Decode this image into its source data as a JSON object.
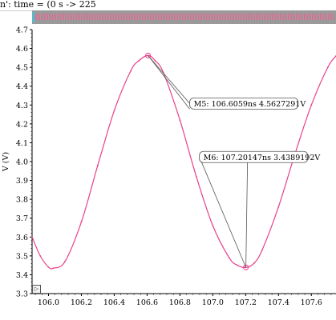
{
  "window": {
    "title": "n': time = (0 s -> 225"
  },
  "colors": {
    "trace": "#e8418a",
    "marker_box": "#ffffff",
    "axis": "#000000",
    "overview_bg": "#9a9a9a"
  },
  "controls": {
    "play_icon": "play-icon",
    "play_glyph": "▷"
  },
  "chart_data": {
    "type": "line",
    "xlim": [
      105.9,
      107.75
    ],
    "ylim": [
      3.3,
      4.7
    ],
    "x_ticks": [
      106.0,
      106.2,
      106.4,
      106.6,
      106.8,
      107.0,
      107.2,
      107.4,
      107.6
    ],
    "x_tick_labels": [
      "106.0",
      "106.2",
      "106.4",
      "106.6",
      "106.8",
      "107.0",
      "107.2",
      "107.4",
      "107.6"
    ],
    "y_ticks": [
      3.3,
      3.4,
      3.5,
      3.6,
      3.7,
      3.8,
      3.9,
      4.0,
      4.1,
      4.2,
      4.3,
      4.4,
      4.5,
      4.6,
      4.7
    ],
    "y_tick_labels": [
      "3.3",
      "3.4",
      "3.5",
      "3.6",
      "3.7",
      "3.8",
      "3.9",
      "4.0",
      "4.1",
      "4.2",
      "4.3",
      "4.4",
      "4.5",
      "4.6",
      "4.7"
    ],
    "xlabel": "",
    "ylabel": "V (V)",
    "series": [
      {
        "x": [
          105.9,
          105.95,
          106.0,
          106.03,
          106.1,
          106.2,
          106.3,
          106.4,
          106.5,
          106.55,
          106.6059,
          106.65,
          106.7,
          106.8,
          106.9,
          107.0,
          107.1,
          107.15,
          107.20147,
          107.25,
          107.3,
          107.4,
          107.5,
          107.6,
          107.7,
          107.75
        ],
        "y": [
          3.6,
          3.5,
          3.44,
          3.435,
          3.47,
          3.68,
          3.98,
          4.27,
          4.48,
          4.535,
          4.5627,
          4.535,
          4.47,
          4.22,
          3.92,
          3.66,
          3.49,
          3.45,
          3.4389,
          3.46,
          3.53,
          3.76,
          4.04,
          4.3,
          4.5,
          4.56
        ]
      }
    ],
    "markers": [
      {
        "label": "M5: 106.6059ns 4.5627291V",
        "x": 106.6059,
        "y": 4.5627291
      },
      {
        "label": "M6: 107.20147ns 3.4389192V",
        "x": 107.20147,
        "y": 3.4389192
      }
    ]
  }
}
